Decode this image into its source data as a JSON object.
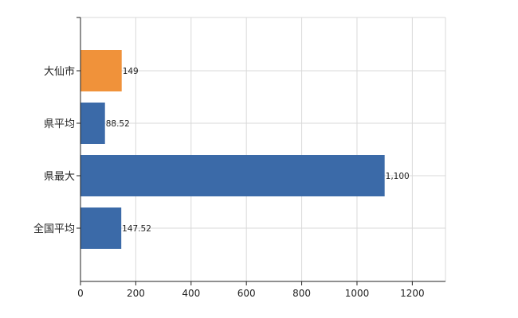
{
  "chart_data": {
    "type": "bar",
    "orientation": "horizontal",
    "categories": [
      "大仙市",
      "県平均",
      "県最大",
      "全国平均"
    ],
    "values": [
      149,
      88.52,
      1100,
      147.52
    ],
    "data_labels": [
      "149",
      "88.52",
      "1,100",
      "147.52"
    ],
    "x_ticks": [
      0,
      200,
      400,
      600,
      800,
      1000,
      1200
    ],
    "xlim": [
      0,
      1320
    ],
    "grid": true,
    "colors": {
      "highlight": "#f0923a",
      "default": "#3b6aa8"
    },
    "highlight_index": 0
  }
}
